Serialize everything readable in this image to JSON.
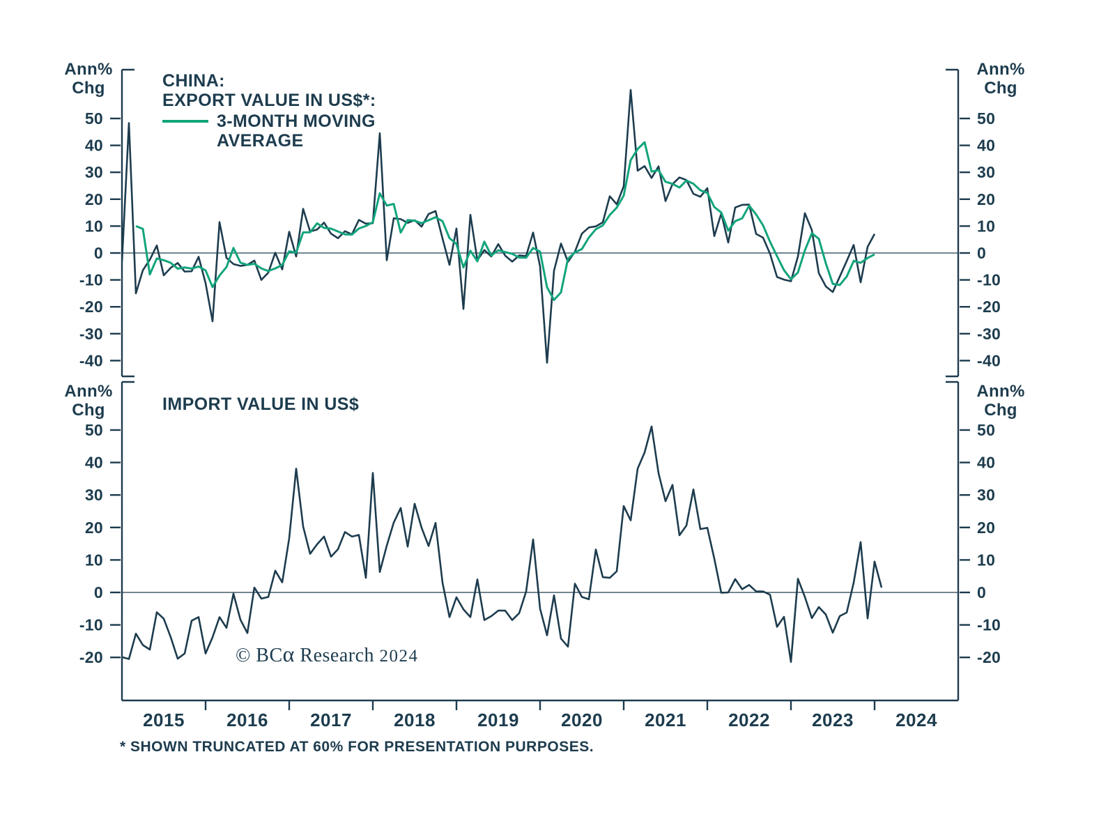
{
  "colors": {
    "ink": "#1d3c4e",
    "green": "#12a47b"
  },
  "axis_captions": {
    "line1": "Ann%",
    "line2": "Chg"
  },
  "top_panel": {
    "title_line1": "CHINA:",
    "title_line2": "EXPORT VALUE IN US$*:",
    "legend_line1": "3-MONTH MOVING",
    "legend_line2": "AVERAGE"
  },
  "bottom_panel": {
    "title": "IMPORT VALUE IN US$"
  },
  "copyright": {
    "symbol": "©",
    "brand": "BC",
    "alpha": "α",
    "name": "Research",
    "year": "2024"
  },
  "footnote": "* SHOWN TRUNCATED AT 60% FOR PRESENTATION PURPOSES.",
  "chart_data": [
    {
      "type": "line",
      "panel": "top",
      "title": "CHINA: EXPORT VALUE IN US$ (ANN% CHG)",
      "ylabel": "Ann% Chg",
      "x_start_year": 2015,
      "x_frequency": "monthly",
      "x_tick_labels": [
        "2015",
        "2016",
        "2017",
        "2018",
        "2019",
        "2020",
        "2021",
        "2022",
        "2023",
        "2024"
      ],
      "yticks": [
        50,
        40,
        30,
        20,
        10,
        0,
        -10,
        -20,
        -30,
        -40
      ],
      "ylim": [
        -47,
        68
      ],
      "grid": false,
      "legend_position": "top-left",
      "note": "* SHOWN TRUNCATED AT 60% FOR PRESENTATION PURPOSES.",
      "series": [
        {
          "name": "EXPORT VALUE IN US$",
          "color": "#1d3c4e",
          "values": [
            -3.3,
            48.3,
            -15.0,
            -6.4,
            -2.5,
            2.8,
            -8.3,
            -5.5,
            -3.7,
            -6.9,
            -6.8,
            -1.4,
            -11.2,
            -25.4,
            11.5,
            -1.8,
            -4.1,
            -4.8,
            -4.4,
            -2.8,
            -10.0,
            -7.3,
            0.1,
            -6.1,
            7.9,
            -1.3,
            16.4,
            8.0,
            8.7,
            11.3,
            7.2,
            5.5,
            8.1,
            6.9,
            12.3,
            10.9,
            11.1,
            44.5,
            -2.7,
            12.9,
            12.6,
            11.2,
            12.2,
            9.8,
            14.5,
            15.6,
            5.4,
            -4.4,
            9.1,
            -20.8,
            14.2,
            -2.7,
            1.1,
            -1.3,
            3.3,
            -1.0,
            -3.2,
            -0.9,
            -1.1,
            7.6,
            -5.0,
            -40.8,
            -6.6,
            3.5,
            -3.3,
            0.5,
            7.2,
            9.5,
            9.9,
            11.4,
            21.1,
            18.1,
            24.8,
            60.6,
            30.6,
            32.3,
            27.9,
            32.2,
            19.3,
            25.6,
            28.1,
            27.1,
            22.0,
            20.9,
            24.1,
            6.3,
            14.7,
            3.9,
            16.9,
            17.9,
            18.0,
            7.1,
            5.7,
            -0.3,
            -8.9,
            -9.9,
            -10.5,
            -1.3,
            14.8,
            8.5,
            -7.5,
            -12.4,
            -14.5,
            -8.8,
            -3.0,
            3.0,
            -10.9,
            2.3,
            7.1
          ]
        },
        {
          "name": "3-MONTH MOVING AVERAGE",
          "color": "#12a47b",
          "definition": "3-month moving average of EXPORT VALUE IN US$"
        }
      ]
    },
    {
      "type": "line",
      "panel": "bottom",
      "title": "IMPORT VALUE IN US$ (ANN% CHG)",
      "ylabel": "Ann% Chg",
      "x_start_year": 2015,
      "x_frequency": "monthly",
      "x_tick_labels": [
        "2015",
        "2016",
        "2017",
        "2018",
        "2019",
        "2020",
        "2021",
        "2022",
        "2023",
        "2024"
      ],
      "yticks": [
        50,
        40,
        30,
        20,
        10,
        0,
        -10,
        -20
      ],
      "ylim": [
        -33,
        65
      ],
      "grid": false,
      "series": [
        {
          "name": "IMPORT VALUE IN US$",
          "color": "#1d3c4e",
          "values": [
            -19.9,
            -20.5,
            -12.7,
            -16.2,
            -17.6,
            -6.1,
            -8.1,
            -13.8,
            -20.4,
            -18.8,
            -8.7,
            -7.6,
            -18.8,
            -13.8,
            -7.6,
            -10.9,
            -0.4,
            -8.4,
            -12.5,
            1.5,
            -1.9,
            -1.4,
            6.7,
            3.1,
            16.7,
            38.1,
            20.3,
            11.9,
            14.8,
            17.2,
            11.0,
            13.3,
            18.6,
            17.2,
            17.7,
            4.5,
            36.8,
            6.3,
            14.4,
            21.5,
            26.0,
            14.1,
            27.3,
            19.9,
            14.3,
            21.4,
            3.0,
            -7.6,
            -1.5,
            -5.2,
            -7.6,
            4.0,
            -8.5,
            -7.3,
            -5.6,
            -5.6,
            -8.5,
            -6.4,
            0.3,
            16.3,
            -5.0,
            -13.2,
            -0.9,
            -14.2,
            -16.7,
            2.7,
            -1.4,
            -2.1,
            13.2,
            4.7,
            4.5,
            6.5,
            26.6,
            22.2,
            38.1,
            43.1,
            51.1,
            36.7,
            28.1,
            33.1,
            17.6,
            20.6,
            31.7,
            19.5,
            19.9,
            10.4,
            -0.1,
            0.0,
            4.1,
            1.0,
            2.3,
            0.3,
            0.3,
            -0.7,
            -10.6,
            -7.5,
            -21.4,
            4.2,
            -1.4,
            -7.9,
            -4.5,
            -6.8,
            -12.4,
            -7.3,
            -6.2,
            3.0,
            15.5,
            -8.0,
            9.5,
            1.5
          ]
        }
      ]
    }
  ]
}
